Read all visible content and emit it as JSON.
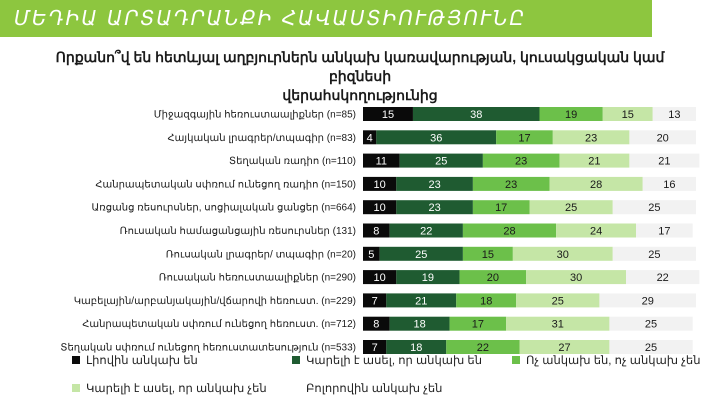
{
  "header": {
    "title": "ՄԵԴԻԱ ԱՐՏԱԴՐԱՆՔԻ ՀԱՎԱՍՏԻՈՒԹՅՈՒՆԸ"
  },
  "chart_data": {
    "type": "bar",
    "orientation": "horizontal",
    "stacked": true,
    "title_line1": "Որքանո՞վ են հետևյալ աղբյուրներն անկախ կառավարության, կուսակցական կամ բիզնեսի",
    "title_line2": "վերահսկողությունից",
    "categories": [
      "Միջազգային հեռուստաալիքներ (n=85)",
      "Հայկական լրագրեր/տպագիր (n=83)",
      "Տեղական ռադիո (n=110)",
      "Հանրապետական սփռում ունեցող ռադիո (n=150)",
      "Առցանց ռեսուրսներ, սոցիալական ցանցեր (n=664)",
      "Ռուսական համացանցային ռեսուրսներ (131)",
      "Ռուսական լրագրեր/ տպագիր (n=20)",
      "Ռուսական հեռուստաալիքներ (n=290)",
      "Կաբելային/արբանյակային/վճարովի հեռուստ. (n=229)",
      "Հանրապետական սփռում ունեցող հեռուստ. (n=712)",
      "Տեղական սփռում ունեցող հեռուստատեսություն (n=533)"
    ],
    "series": [
      {
        "name": "Լիովին անկախ են",
        "color": "#0a0a0a",
        "text_color": "#ffffff",
        "values": [
          15,
          4,
          11,
          10,
          10,
          8,
          5,
          10,
          7,
          8,
          7
        ]
      },
      {
        "name": "Կարելի է ասել, որ անկախ են",
        "color": "#1f5b31",
        "text_color": "#ffffff",
        "values": [
          38,
          36,
          25,
          23,
          23,
          22,
          25,
          19,
          21,
          18,
          18
        ]
      },
      {
        "name": "Ոչ անկախ են, ոչ անկախ չեն",
        "color": "#6cc04a",
        "text_color": "#1a1a1a",
        "values": [
          19,
          17,
          23,
          23,
          17,
          28,
          15,
          20,
          18,
          17,
          22
        ]
      },
      {
        "name": "Կարելի է ասել, որ անկախ չեն",
        "color": "#c5e6a6",
        "text_color": "#1a1a1a",
        "values": [
          15,
          23,
          21,
          28,
          25,
          24,
          30,
          30,
          25,
          31,
          27
        ]
      },
      {
        "name": "Բոլորովին անկախ չեն",
        "color": "#f2f2f2",
        "text_color": "#1a1a1a",
        "values": [
          13,
          20,
          21,
          16,
          25,
          17,
          25,
          22,
          29,
          25,
          25
        ]
      }
    ],
    "xlim": [
      0,
      100
    ],
    "grid": false,
    "legend_position": "bottom"
  }
}
